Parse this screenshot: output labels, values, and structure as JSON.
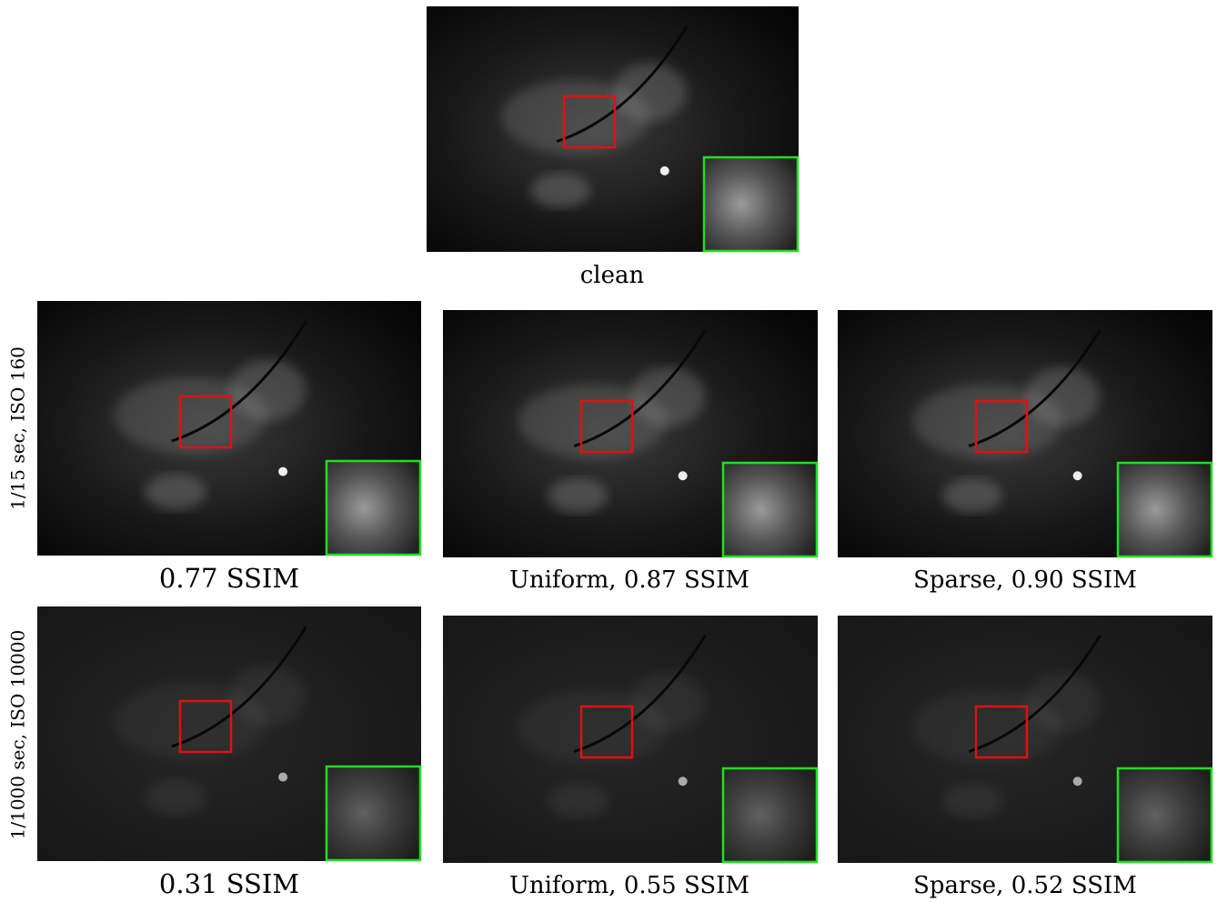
{
  "figure": {
    "top": {
      "caption": "clean"
    },
    "rows": [
      {
        "label": "1/15 sec, ISO 160",
        "panels": [
          {
            "caption": "0.77 SSIM"
          },
          {
            "caption": "Uniform, 0.87 SSIM"
          },
          {
            "caption": "Sparse, 0.90 SSIM"
          }
        ]
      },
      {
        "label": "1/1000 sec, ISO 10000",
        "panels": [
          {
            "caption": "0.31 SSIM"
          },
          {
            "caption": "Uniform, 0.55 SSIM"
          },
          {
            "caption": "Sparse, 0.52 SSIM"
          }
        ]
      }
    ]
  }
}
